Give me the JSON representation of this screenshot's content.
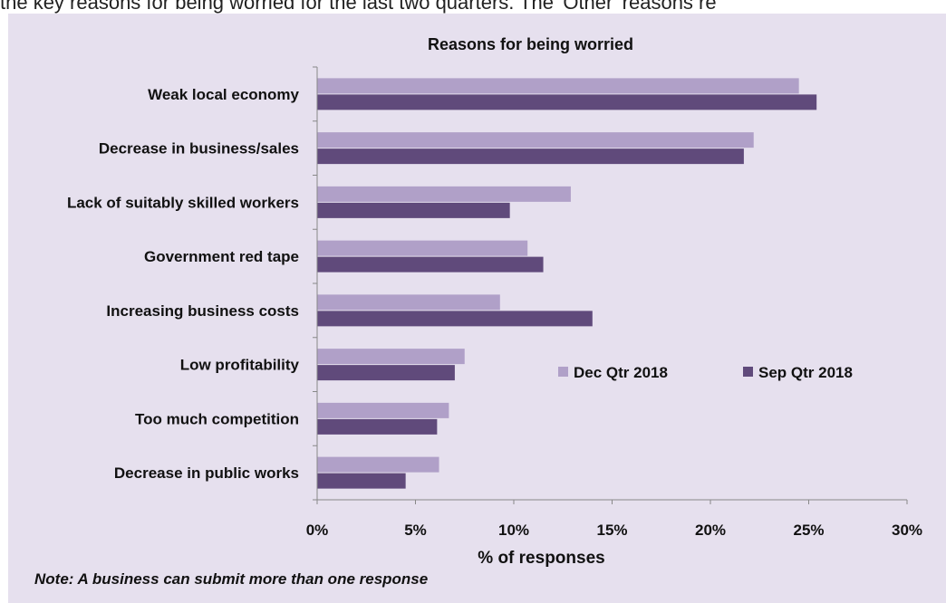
{
  "top_text": "the key reasons for being worried for the last two quarters. The 'Other' reasons re",
  "note": "Note: A business can submit more than one response",
  "colors": {
    "panel_background": "#e6e0ee",
    "dec_series": "#b0a0c8",
    "sep_series": "#604a7b",
    "axis": "#888888"
  },
  "chart_data": {
    "type": "bar",
    "orientation": "horizontal",
    "title": "Reasons for being worried",
    "xlabel": "% of responses",
    "ylabel": "",
    "xlim": [
      0,
      30
    ],
    "x_ticks": [
      "0%",
      "5%",
      "10%",
      "15%",
      "20%",
      "25%",
      "30%"
    ],
    "grid": false,
    "legend_position": "right-middle",
    "categories": [
      "Weak local economy",
      "Decrease in business/sales",
      "Lack of suitably skilled workers",
      "Government red tape",
      "Increasing business costs",
      "Low profitability",
      "Too much competition",
      "Decrease in public works"
    ],
    "series": [
      {
        "name": "Dec Qtr 2018",
        "values": [
          24.5,
          22.2,
          12.9,
          10.7,
          9.3,
          7.5,
          6.7,
          6.2
        ]
      },
      {
        "name": "Sep Qtr 2018",
        "values": [
          25.4,
          21.7,
          9.8,
          11.5,
          14.0,
          7.0,
          6.1,
          4.5
        ]
      }
    ]
  }
}
